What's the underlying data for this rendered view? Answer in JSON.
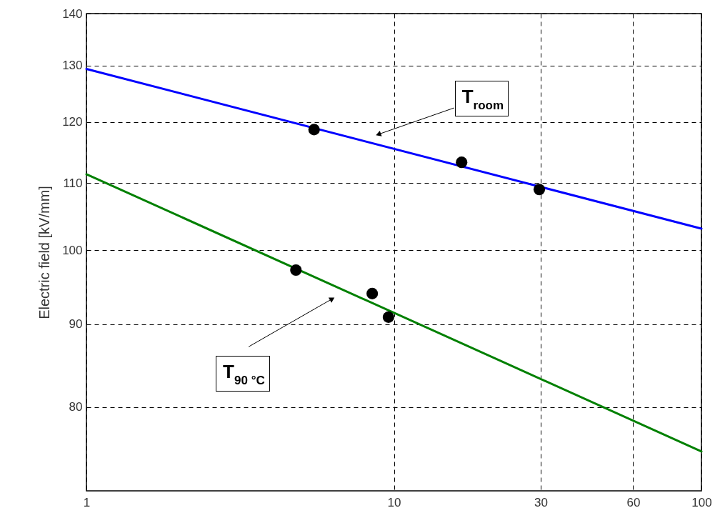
{
  "chart_data": {
    "type": "line",
    "ylabel": "Electric field [kV/mm]",
    "log": "xy",
    "xlim": [
      1,
      100
    ],
    "xticks": [
      1,
      10,
      30,
      60,
      100
    ],
    "ylim": [
      71,
      140
    ],
    "yticks": [
      80,
      90,
      100,
      110,
      120,
      130,
      140
    ],
    "grid": true,
    "series": [
      {
        "color": "#0000ff",
        "x": [
          1,
          100
        ],
        "values": [
          129.4,
          103.1
        ]
      },
      {
        "color": "#008000",
        "x": [
          1,
          100
        ],
        "values": [
          111.4,
          75.1
        ]
      },
      {
        "type": "scatter",
        "color": "#000000",
        "marker": "circle",
        "x": [
          5.5,
          16.6,
          29.7
        ],
        "values": [
          118.7,
          113.3,
          109.0
        ]
      },
      {
        "type": "scatter",
        "color": "#000000",
        "marker": "circle",
        "x": [
          4.8,
          8.5,
          9.6
        ],
        "values": [
          97.2,
          94.0,
          90.9
        ]
      }
    ],
    "annotations": [
      {
        "text": "T$_{room}$",
        "x": 8.9,
        "y": 117.9
      },
      {
        "text": "T$_{90 °C}$",
        "x": 6.3,
        "y": 93.3
      }
    ]
  }
}
